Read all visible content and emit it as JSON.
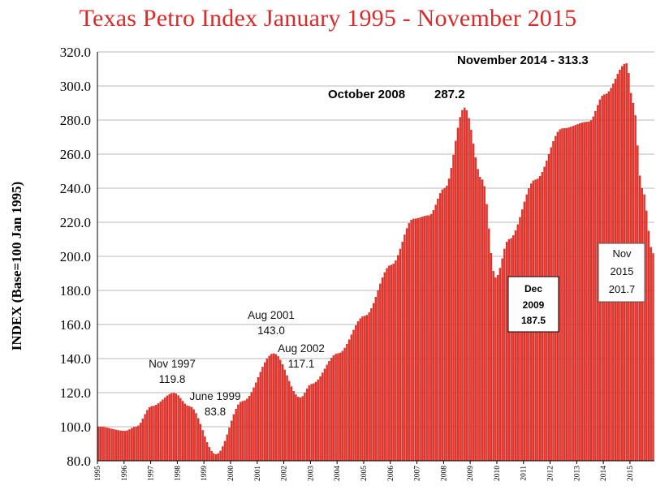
{
  "chart_data": {
    "type": "bar",
    "title": "Texas Petro Index January 1995 - November 2015",
    "ylabel": "INDEX (Base=100 Jan 1995)",
    "xlabel": "",
    "ylim": [
      80.0,
      320.0
    ],
    "y_ticks": [
      "80.0",
      "100.0",
      "120.0",
      "140.0",
      "160.0",
      "180.0",
      "200.0",
      "220.0",
      "240.0",
      "260.0",
      "280.0",
      "300.0",
      "320.0"
    ],
    "x_ticks": [
      "1995",
      "1996",
      "1997",
      "1998",
      "1999",
      "2000",
      "2001",
      "2002",
      "2003",
      "2004",
      "2005",
      "2006",
      "2007",
      "2008",
      "2009",
      "2010",
      "2011",
      "2012",
      "2013",
      "2014",
      "2015"
    ],
    "grid": "horizontal",
    "bar_color": "#e8322a",
    "key_points": [
      {
        "date": "1995-01",
        "value": 100.0
      },
      {
        "date": "1996-01",
        "value": 97.5
      },
      {
        "date": "1996-06",
        "value": 100.0
      },
      {
        "date": "1997-01",
        "value": 112.0
      },
      {
        "date": "1997-11",
        "value": 119.8
      },
      {
        "date": "1998-06",
        "value": 112.0
      },
      {
        "date": "1999-06",
        "value": 83.8
      },
      {
        "date": "2000-06",
        "value": 115.0
      },
      {
        "date": "2001-08",
        "value": 143.0
      },
      {
        "date": "2002-08",
        "value": 117.1
      },
      {
        "date": "2003-01",
        "value": 125.0
      },
      {
        "date": "2004-01",
        "value": 143.0
      },
      {
        "date": "2005-01",
        "value": 165.0
      },
      {
        "date": "2006-01",
        "value": 195.0
      },
      {
        "date": "2006-11",
        "value": 222.0
      },
      {
        "date": "2007-06",
        "value": 224.0
      },
      {
        "date": "2008-01",
        "value": 240.0
      },
      {
        "date": "2008-10",
        "value": 287.2
      },
      {
        "date": "2009-06",
        "value": 245.0
      },
      {
        "date": "2009-12",
        "value": 187.5
      },
      {
        "date": "2010-06",
        "value": 210.0
      },
      {
        "date": "2011-06",
        "value": 245.0
      },
      {
        "date": "2012-06",
        "value": 275.0
      },
      {
        "date": "2013-06",
        "value": 279.0
      },
      {
        "date": "2014-01",
        "value": 295.0
      },
      {
        "date": "2014-11",
        "value": 313.3
      },
      {
        "date": "2015-02",
        "value": 290.0
      },
      {
        "date": "2015-06",
        "value": 240.0
      },
      {
        "date": "2015-11",
        "value": 201.7
      }
    ],
    "annotations": {
      "nov1997": {
        "line1": "Nov 1997",
        "line2": "119.8"
      },
      "jun1999": {
        "line1": "June 1999",
        "line2": "83.8"
      },
      "aug2001": {
        "line1": "Aug 2001",
        "line2": "143.0"
      },
      "aug2002": {
        "line1": "Aug 2002",
        "line2": "117.1"
      },
      "oct2008": {
        "label": "October 2008",
        "value": "287.2"
      },
      "nov2014": {
        "label": "November 2014 - 313.3"
      },
      "dec2009": {
        "line1": "Dec",
        "line2": "2009",
        "line3": "187.5"
      },
      "nov2015": {
        "line1": "Nov",
        "line2": "2015",
        "line3": "201.7"
      }
    }
  }
}
